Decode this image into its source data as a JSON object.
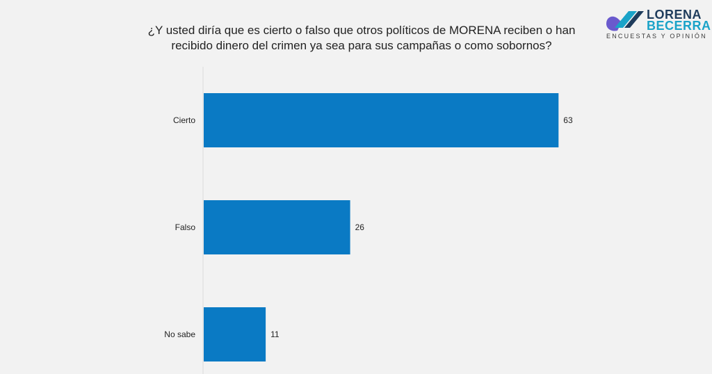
{
  "header": {
    "title": "¿Y usted diría que es cierto o falso que otros políticos de MORENA reciben o han recibido dinero del crimen ya sea para sus campañas o como sobornos?"
  },
  "logo": {
    "name_line1": "LORENA",
    "name_line2": "BECERRA",
    "tagline": "ENCUESTAS Y OPINIÓN",
    "colors": [
      "#1f3c5c",
      "#1aa3c8",
      "#6a5acd"
    ]
  },
  "chart_data": {
    "type": "bar",
    "orientation": "horizontal",
    "title": "¿Y usted diría que es cierto o falso que otros políticos de MORENA reciben o han recibido dinero del crimen ya sea para sus campañas o como sobornos?",
    "categories": [
      "Cierto",
      "Falso",
      "No sabe"
    ],
    "values": [
      63,
      26,
      11
    ],
    "xlim": [
      0,
      70
    ],
    "bar_color": "#0a7ac4",
    "grid": false,
    "legend": "none",
    "data_labels": true
  }
}
